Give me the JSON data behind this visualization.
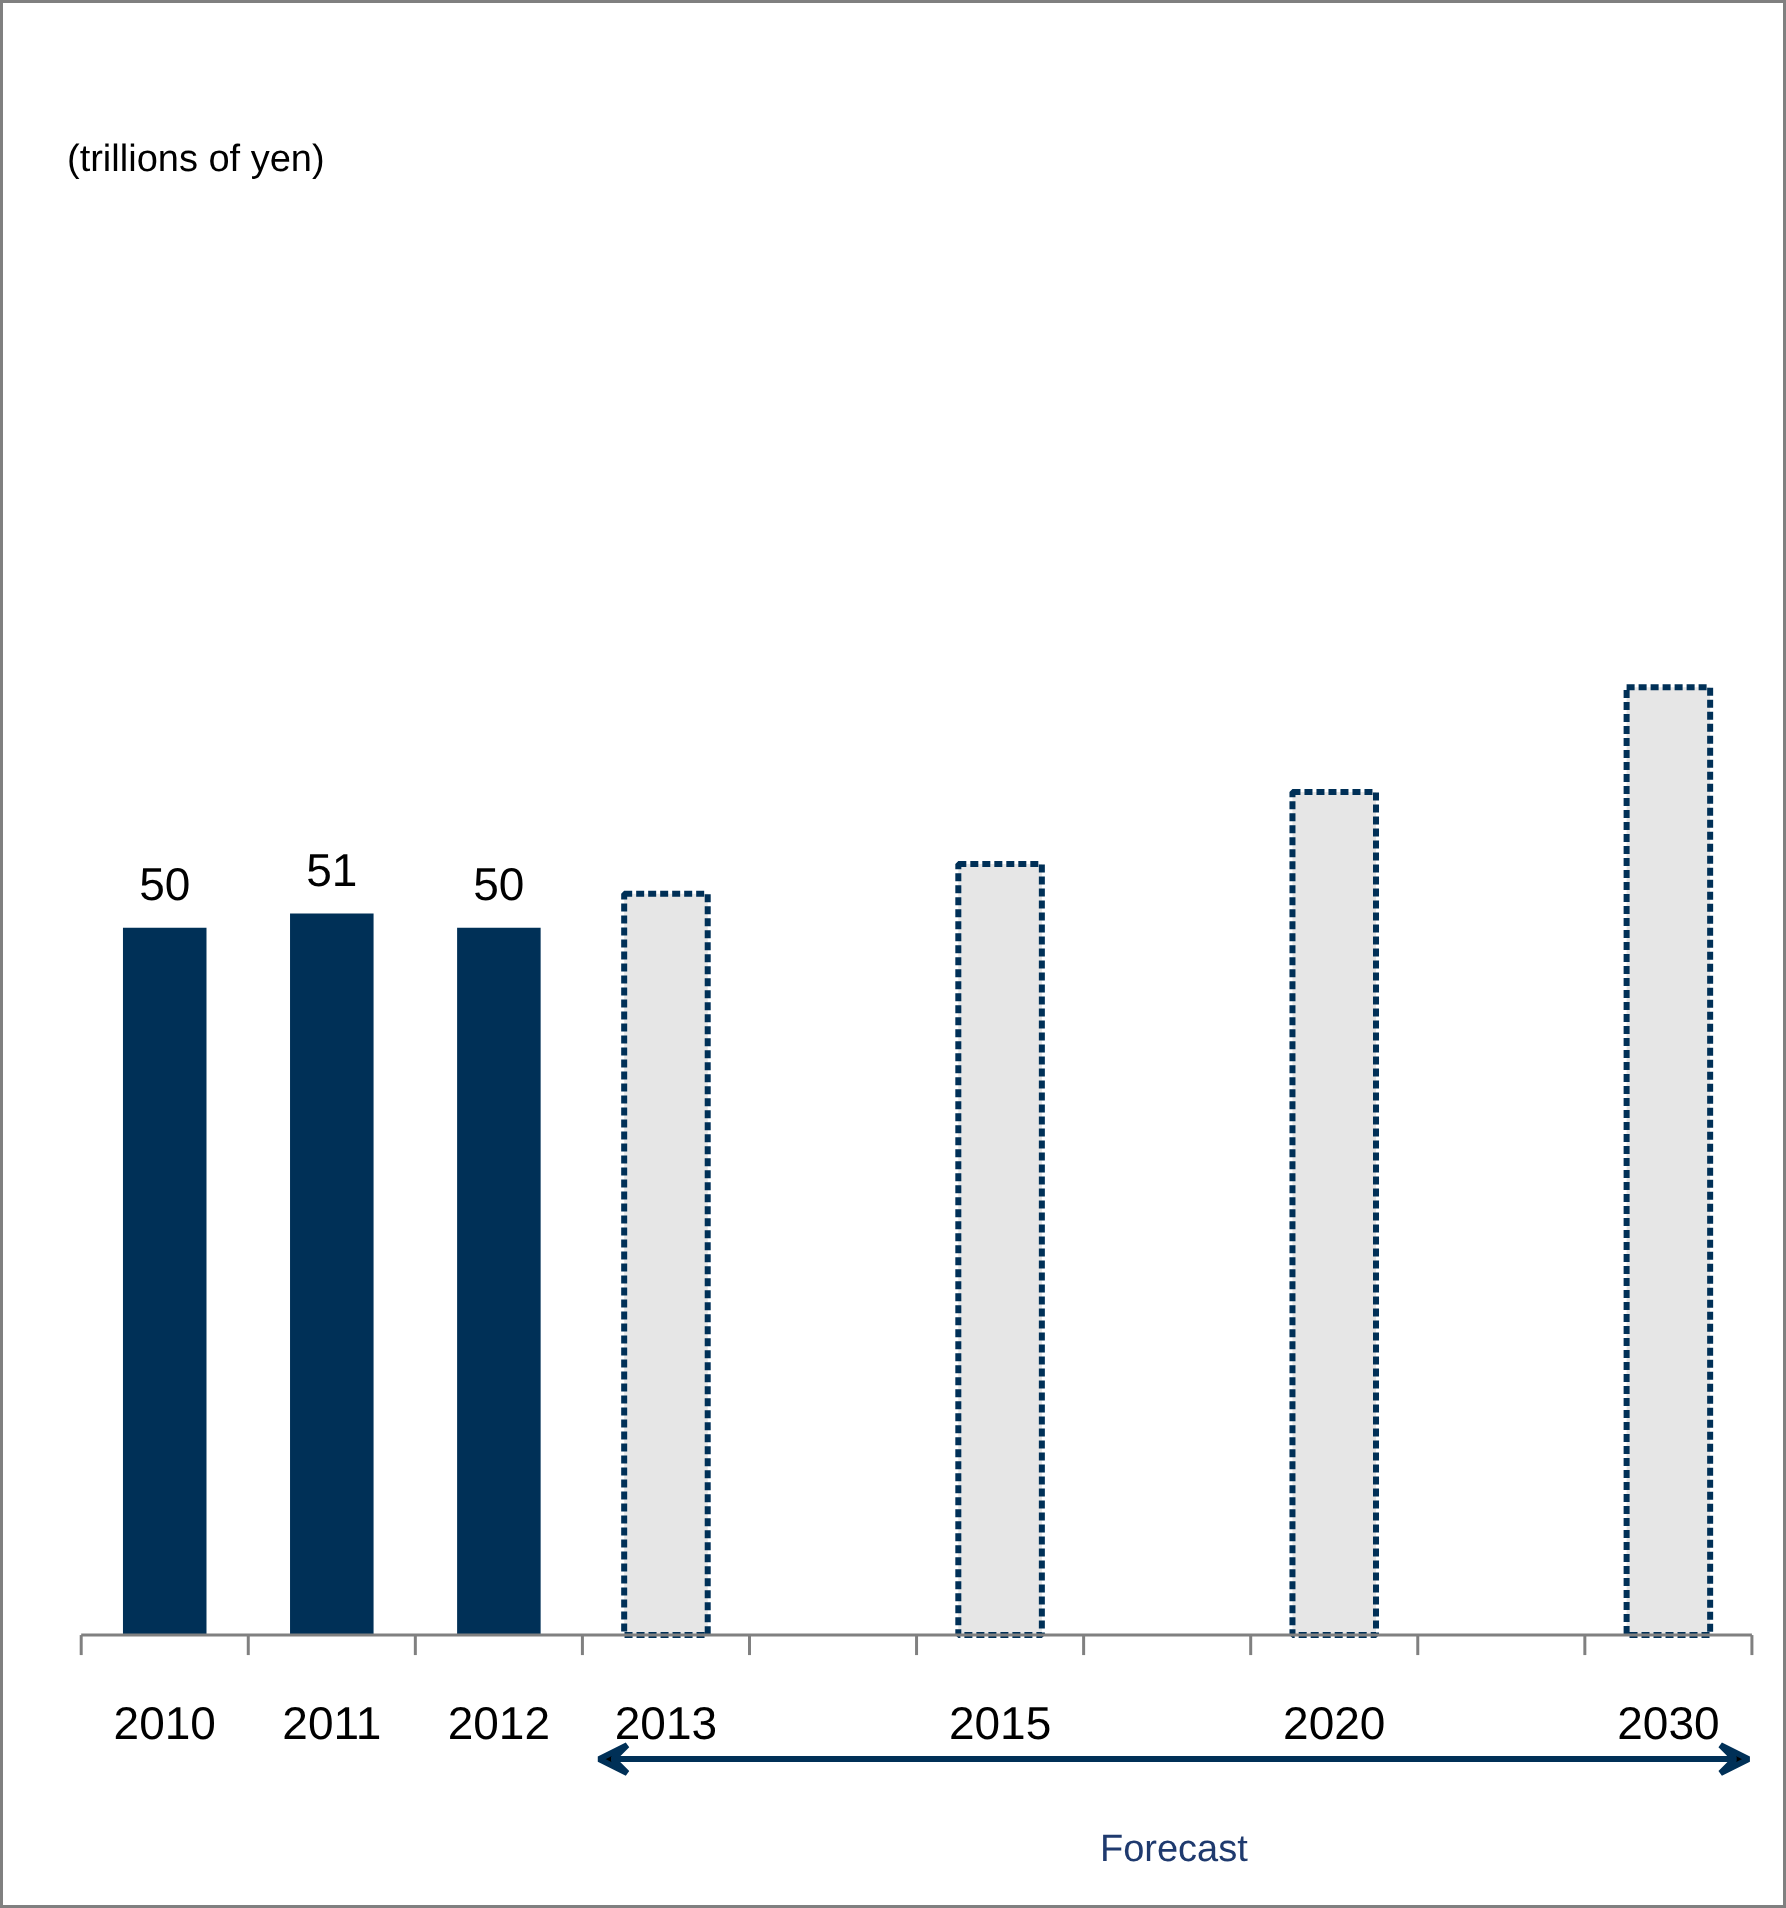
{
  "chart_data": {
    "type": "bar",
    "categories": [
      "2010",
      "2011",
      "2012",
      "2013",
      null,
      "2015",
      null,
      "2020",
      null,
      "2030"
    ],
    "series": [
      {
        "color": "#003057",
        "values": [
          50,
          51,
          50,
          null,
          null,
          null,
          null,
          null,
          null,
          null
        ],
        "value_labels": [
          "50",
          "51",
          "50",
          null,
          null,
          null,
          null,
          null,
          null,
          null
        ]
      },
      {
        "color": "#e6e6e6",
        "line_style": "dashed",
        "values": [
          null,
          null,
          null,
          52.4,
          null,
          54.5,
          null,
          59.6,
          null,
          67.0
        ]
      }
    ],
    "annotations": [
      "(trillions of yen)",
      "Forecast"
    ]
  }
}
